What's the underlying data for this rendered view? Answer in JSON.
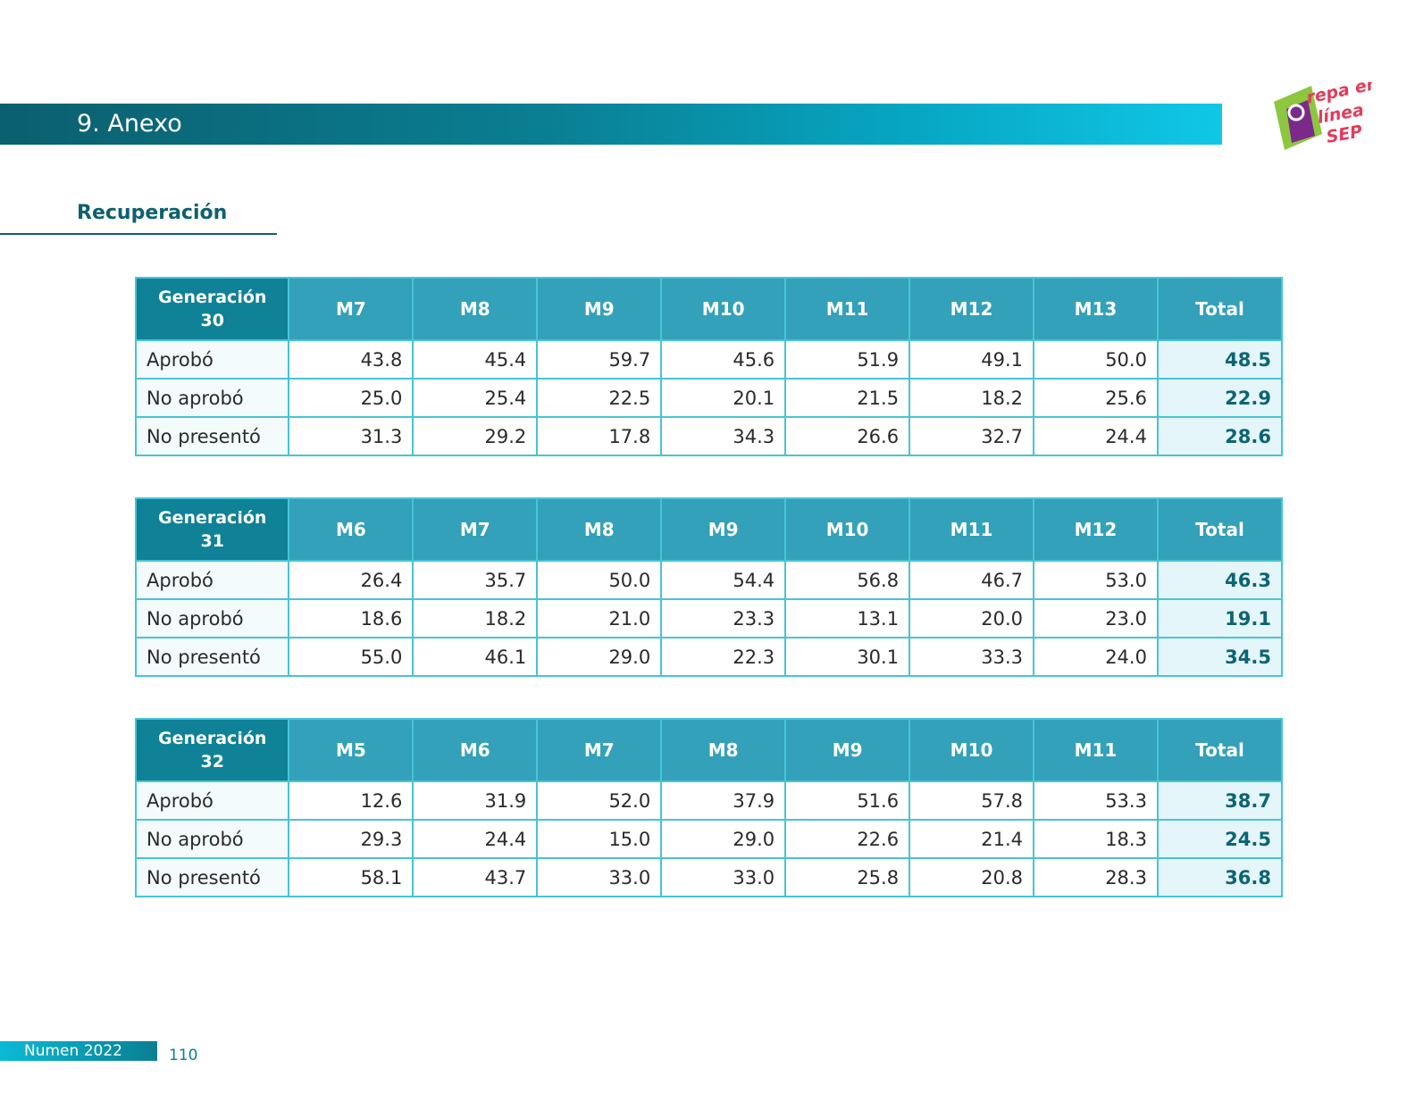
{
  "header": {
    "title": "9. Anexo",
    "logo": {
      "text_line1": "repa en",
      "text_line2": "línea",
      "text_line3": "SEP",
      "colors": [
        "#8dc63f",
        "#7b2a8a",
        "#e23c5a"
      ]
    }
  },
  "section": {
    "title": "Recuperación"
  },
  "tables": [
    {
      "header": {
        "gen_label": "Generación",
        "gen_number": "30",
        "columns": [
          "M7",
          "M8",
          "M9",
          "M10",
          "M11",
          "M12",
          "M13"
        ],
        "total_label": "Total"
      },
      "rows": [
        {
          "label": "Aprobó",
          "values": [
            "43.8",
            "45.4",
            "59.7",
            "45.6",
            "51.9",
            "49.1",
            "50.0"
          ],
          "total": "48.5"
        },
        {
          "label": "No aprobó",
          "values": [
            "25.0",
            "25.4",
            "22.5",
            "20.1",
            "21.5",
            "18.2",
            "25.6"
          ],
          "total": "22.9"
        },
        {
          "label": "No presentó",
          "values": [
            "31.3",
            "29.2",
            "17.8",
            "34.3",
            "26.6",
            "32.7",
            "24.4"
          ],
          "total": "28.6"
        }
      ]
    },
    {
      "header": {
        "gen_label": "Generación",
        "gen_number": "31",
        "columns": [
          "M6",
          "M7",
          "M8",
          "M9",
          "M10",
          "M11",
          "M12"
        ],
        "total_label": "Total"
      },
      "rows": [
        {
          "label": "Aprobó",
          "values": [
            "26.4",
            "35.7",
            "50.0",
            "54.4",
            "56.8",
            "46.7",
            "53.0"
          ],
          "total": "46.3"
        },
        {
          "label": "No aprobó",
          "values": [
            "18.6",
            "18.2",
            "21.0",
            "23.3",
            "13.1",
            "20.0",
            "23.0"
          ],
          "total": "19.1"
        },
        {
          "label": "No presentó",
          "values": [
            "55.0",
            "46.1",
            "29.0",
            "22.3",
            "30.1",
            "33.3",
            "24.0"
          ],
          "total": "34.5"
        }
      ]
    },
    {
      "header": {
        "gen_label": "Generación",
        "gen_number": "32",
        "columns": [
          "M5",
          "M6",
          "M7",
          "M8",
          "M9",
          "M10",
          "M11"
        ],
        "total_label": "Total"
      },
      "rows": [
        {
          "label": "Aprobó",
          "values": [
            "12.6",
            "31.9",
            "52.0",
            "37.9",
            "51.6",
            "57.8",
            "53.3"
          ],
          "total": "38.7"
        },
        {
          "label": "No aprobó",
          "values": [
            "29.3",
            "24.4",
            "15.0",
            "29.0",
            "22.6",
            "21.4",
            "18.3"
          ],
          "total": "24.5"
        },
        {
          "label": "No presentó",
          "values": [
            "58.1",
            "43.7",
            "33.0",
            "33.0",
            "25.8",
            "20.8",
            "28.3"
          ],
          "total": "36.8"
        }
      ]
    }
  ],
  "footer": {
    "label": "Numen 2022",
    "page": "110"
  },
  "colors": {
    "accent_dark": "#0d6070",
    "header_cell": "#33a1b9",
    "gen_cell": "#0f8297",
    "border": "#47c4d6",
    "total_bg": "#e5f6fa"
  }
}
